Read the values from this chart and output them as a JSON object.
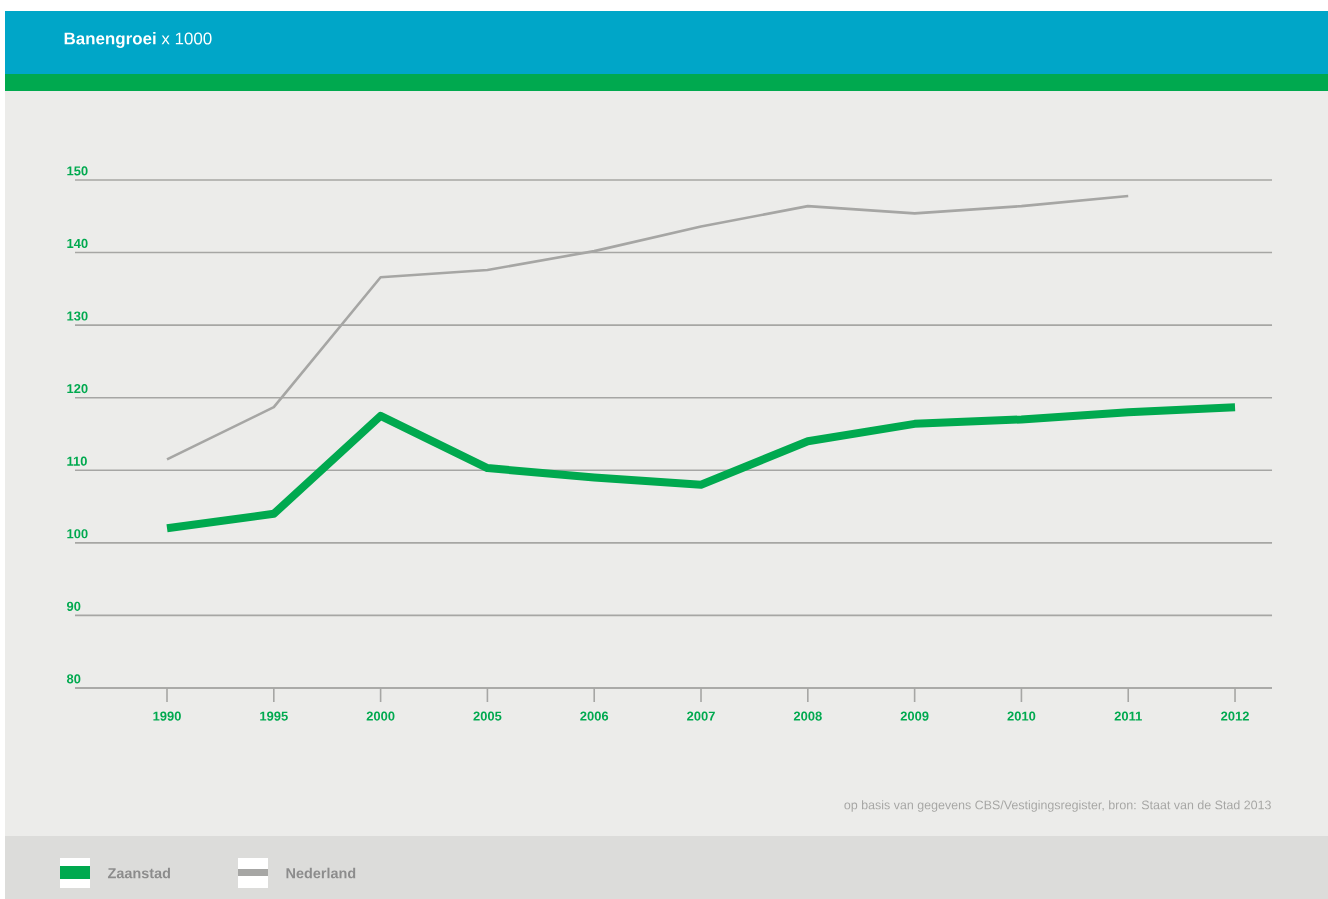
{
  "chart_data": {
    "type": "line",
    "title": "**Banengroei** x 1000",
    "categories": [
      "1990",
      "1995",
      "2000",
      "2005",
      "2006",
      "2007",
      "2008",
      "2009",
      "2010",
      "2011",
      "2012"
    ],
    "series": [
      {
        "name": "Zaanstad",
        "color": "#00a94f",
        "values": [
          102,
          104,
          117.5,
          110.3,
          109,
          108,
          114,
          116.4,
          117,
          118,
          118.7
        ]
      },
      {
        "name": "Nederland",
        "color": "#a6a6a4",
        "values": [
          111.5,
          118.7,
          136.6,
          137.6,
          140.2,
          143.6,
          146.4,
          145.4,
          146.4,
          147.8,
          null
        ]
      }
    ],
    "ylim": [
      80,
      150
    ],
    "yticks": [
      80,
      90,
      100,
      110,
      120,
      130,
      140,
      150
    ],
    "grid": "y",
    "legend": "bottom",
    "annotations": [
      "op basis van gegevens CBS/Vestigingsregister, bron: Staat van de Stad 2013"
    ]
  }
}
